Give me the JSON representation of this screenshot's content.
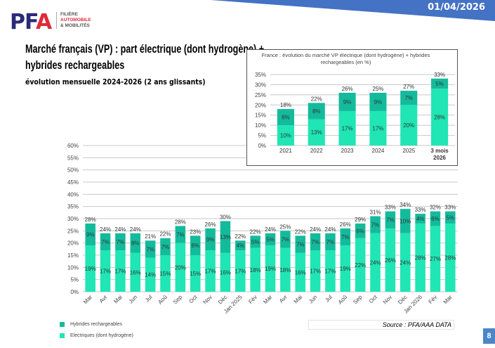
{
  "header": {
    "date": "01/04/2026",
    "logo": {
      "letters": "PFA",
      "line1": "FILIÈRE",
      "line2": "AUTOMOBILE",
      "line3": "& MOBILITÉS"
    }
  },
  "title": "Marché français (VP) : part électrique (dont hydrogène) + hybrides rechargeables",
  "subtitle": "évolution mensuelle 2024-2026 (2 ans glissants)",
  "legend": {
    "phev": "Hybrides rechargeables",
    "ev": "Electriques (dont hydrogène)"
  },
  "source": "Source : PFA/AAA DATA",
  "page_number": "8",
  "colors": {
    "ev": "#1fe6b4",
    "phev": "#13bb9c",
    "band": "#4472c4"
  },
  "chart_data": [
    {
      "type": "bar",
      "stacked": true,
      "ylim": [
        0,
        60
      ],
      "yticks": [
        "0%",
        "5%",
        "10%",
        "15%",
        "20%",
        "25%",
        "30%",
        "35%",
        "40%",
        "45%",
        "50%",
        "55%",
        "60%"
      ],
      "grid": true,
      "categories": [
        "Mar",
        "Avr",
        "Mai",
        "Jun",
        "Jul",
        "Aoû",
        "Sep",
        "Oct",
        "Nov",
        "Déc",
        "Jan 2025",
        "Fév",
        "Mar",
        "Avr",
        "Mai",
        "Jun",
        "Jul",
        "Aoû",
        "Sep",
        "Oct",
        "Nov",
        "Déc",
        "Jan 2026",
        "Fév",
        "Mar"
      ],
      "series": [
        {
          "name": "Electriques (dont hydrogène)",
          "values": [
            19,
            17,
            17,
            16,
            14,
            15,
            20,
            15,
            17,
            16,
            17,
            18,
            19,
            18,
            16,
            17,
            17,
            19,
            22,
            24,
            26,
            24,
            28,
            27,
            28
          ]
        },
        {
          "name": "Hybrides rechargeables",
          "values": [
            9,
            7,
            7,
            8,
            7,
            7,
            7,
            8,
            9,
            13,
            4,
            5,
            5,
            7,
            7,
            7,
            7,
            7,
            6,
            7,
            7,
            10,
            4,
            6,
            5
          ]
        }
      ],
      "totals": [
        28,
        24,
        24,
        24,
        21,
        22,
        28,
        23,
        26,
        30,
        22,
        22,
        24,
        25,
        22,
        24,
        24,
        26,
        29,
        31,
        33,
        34,
        33,
        32,
        33
      ]
    },
    {
      "type": "bar",
      "stacked": true,
      "title": "France : évolution du marché VP électrique (dont hydrogène) + hybrides rechargeables (en %)",
      "ylim": [
        0,
        35
      ],
      "yticks": [
        "0%",
        "5%",
        "10%",
        "15%",
        "20%",
        "25%",
        "30%",
        "35%"
      ],
      "grid": true,
      "categories": [
        "2021",
        "2022",
        "2023",
        "2024",
        "2025",
        "3 mois 2026"
      ],
      "series": [
        {
          "name": "Electriques (dont hydrogène)",
          "values": [
            10,
            13,
            17,
            17,
            20,
            28
          ]
        },
        {
          "name": "Hybrides rechargeables",
          "values": [
            8,
            8,
            9,
            9,
            7,
            5
          ]
        }
      ],
      "totals": [
        18,
        22,
        26,
        25,
        27,
        33
      ]
    }
  ]
}
